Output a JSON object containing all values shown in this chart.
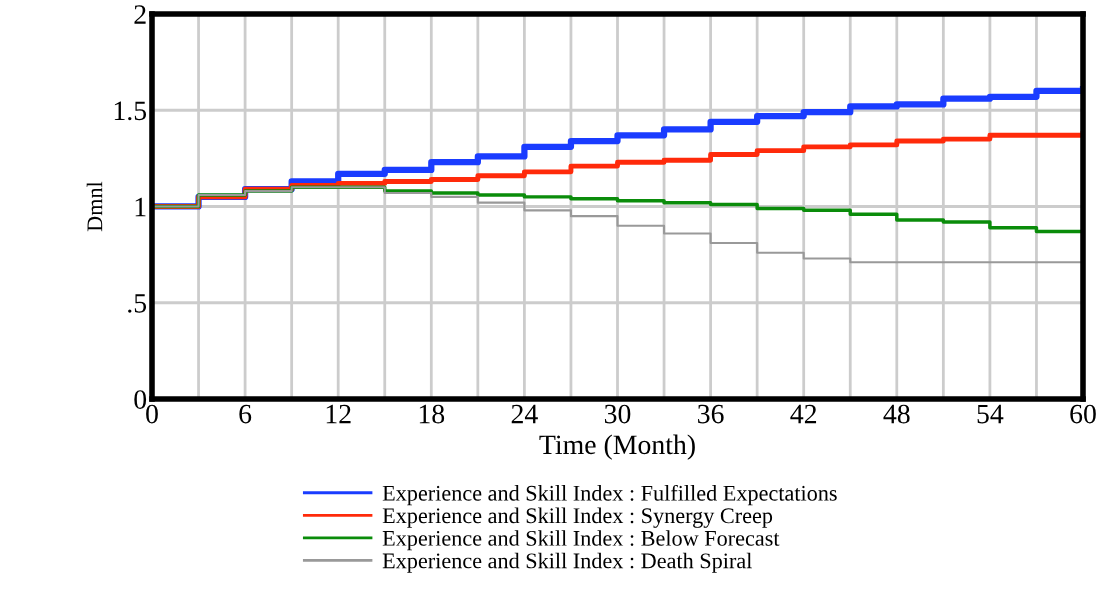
{
  "chart_data": {
    "type": "step",
    "xlabel": "Time (Month)",
    "ylabel": "Dmnl",
    "x": [
      0,
      3,
      6,
      9,
      12,
      15,
      18,
      21,
      24,
      27,
      30,
      33,
      36,
      39,
      42,
      45,
      48,
      51,
      54,
      57,
      60
    ],
    "series": [
      {
        "name": "Experience and Skill Index : Fulfilled Expectations",
        "color": "#1a3cff",
        "values": [
          1.0,
          1.05,
          1.09,
          1.13,
          1.17,
          1.19,
          1.23,
          1.26,
          1.31,
          1.34,
          1.37,
          1.4,
          1.44,
          1.47,
          1.49,
          1.52,
          1.53,
          1.56,
          1.57,
          1.6,
          1.61
        ]
      },
      {
        "name": "Experience and Skill Index : Synergy Creep",
        "color": "#ff2a0a",
        "values": [
          1.0,
          1.05,
          1.09,
          1.11,
          1.12,
          1.13,
          1.14,
          1.16,
          1.18,
          1.21,
          1.23,
          1.24,
          1.27,
          1.29,
          1.31,
          1.32,
          1.34,
          1.35,
          1.37,
          1.37,
          1.38
        ]
      },
      {
        "name": "Experience and Skill Index : Below Forecast",
        "color": "#0a8c0a",
        "values": [
          1.0,
          1.06,
          1.08,
          1.1,
          1.1,
          1.08,
          1.07,
          1.06,
          1.05,
          1.04,
          1.03,
          1.02,
          1.01,
          0.99,
          0.98,
          0.96,
          0.93,
          0.92,
          0.89,
          0.87,
          0.84
        ]
      },
      {
        "name": "Experience and Skill Index : Death Spiral",
        "color": "#999999",
        "values": [
          1.0,
          1.06,
          1.08,
          1.1,
          1.1,
          1.07,
          1.05,
          1.02,
          0.98,
          0.95,
          0.9,
          0.86,
          0.81,
          0.76,
          0.73,
          0.71,
          0.71,
          0.71,
          0.71,
          0.71,
          0.71
        ]
      }
    ],
    "xlim": [
      0,
      60
    ],
    "xticks": [
      0,
      {
        "value": 3,
        "label": null
      },
      6,
      {
        "value": 9,
        "label": null
      },
      12,
      {
        "value": 15,
        "label": null
      },
      18,
      {
        "value": 21,
        "label": null
      },
      24,
      {
        "value": 27,
        "label": null
      },
      30,
      {
        "value": 33,
        "label": null
      },
      36,
      {
        "value": 39,
        "label": null
      },
      42,
      {
        "value": 45,
        "label": null
      },
      48,
      {
        "value": 51,
        "label": null
      },
      54,
      {
        "value": 57,
        "label": null
      },
      60
    ],
    "ylim": [
      0,
      2
    ],
    "yticks": [
      0,
      {
        "value": 0.5,
        "label": ".5"
      },
      1,
      1.5,
      2
    ],
    "grid": true,
    "legend": "bottom",
    "line_style": "solid"
  }
}
